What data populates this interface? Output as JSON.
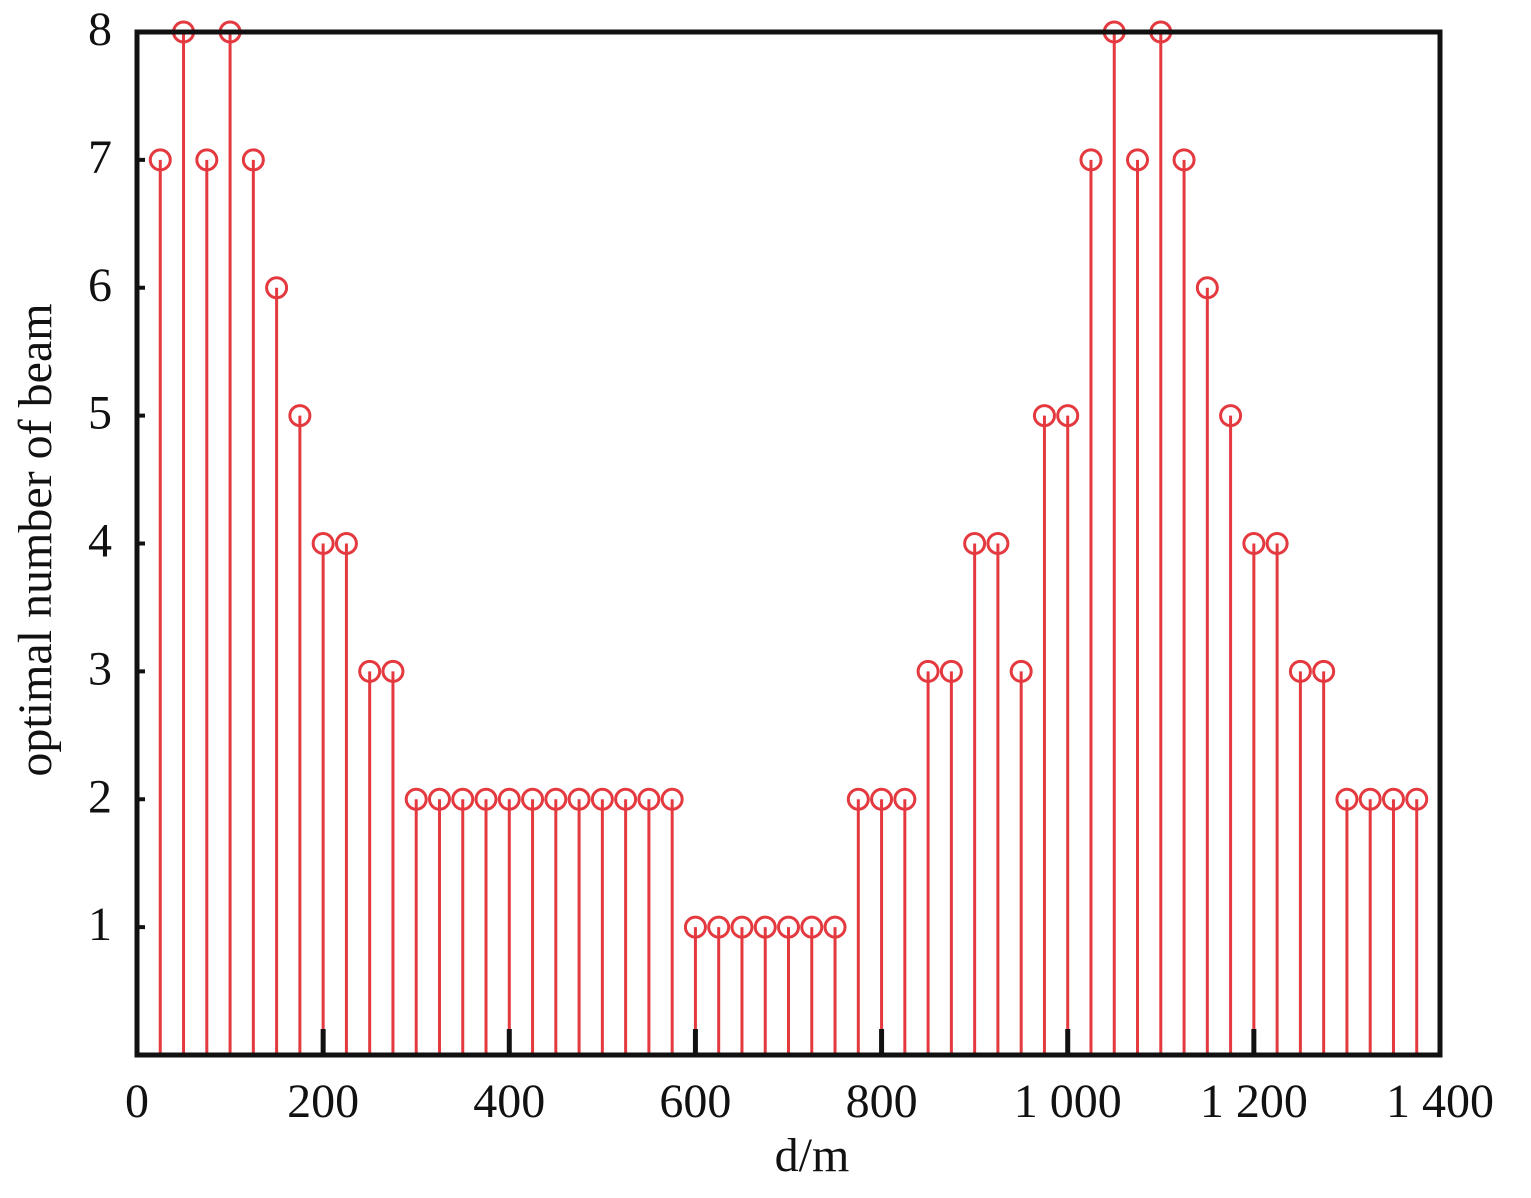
{
  "chart_data": {
    "type": "stem",
    "x_label": "d/m",
    "y_label": "optimal number of beam",
    "x": [
      25,
      50,
      75,
      100,
      125,
      150,
      175,
      200,
      225,
      250,
      275,
      300,
      325,
      350,
      375,
      400,
      425,
      450,
      475,
      500,
      525,
      550,
      575,
      600,
      625,
      650,
      675,
      700,
      725,
      750,
      775,
      800,
      825,
      850,
      875,
      900,
      925,
      950,
      975,
      1000,
      1025,
      1050,
      1075,
      1100,
      1125,
      1150,
      1175,
      1200,
      1225,
      1250,
      1275,
      1300,
      1325,
      1350,
      1375
    ],
    "values": [
      7,
      8,
      7,
      8,
      7,
      6,
      5,
      4,
      4,
      3,
      3,
      2,
      2,
      2,
      2,
      2,
      2,
      2,
      2,
      2,
      2,
      2,
      2,
      1,
      1,
      1,
      1,
      1,
      1,
      1,
      2,
      2,
      2,
      3,
      3,
      4,
      4,
      3,
      5,
      5,
      7,
      8,
      7,
      8,
      7,
      6,
      5,
      4,
      4,
      3,
      3,
      2,
      2,
      2,
      2
    ],
    "color": "#e3393f",
    "xlim": [
      0,
      1400
    ],
    "ylim": [
      0,
      8
    ],
    "xticks": [
      0,
      200,
      400,
      600,
      800,
      {
        "value": 1000,
        "label": "1 000"
      },
      {
        "value": 1200,
        "label": "1 200"
      },
      {
        "value": 1400,
        "label": "1 400"
      }
    ],
    "yticks": [
      1,
      2,
      3,
      4,
      5,
      6,
      7,
      8
    ]
  }
}
